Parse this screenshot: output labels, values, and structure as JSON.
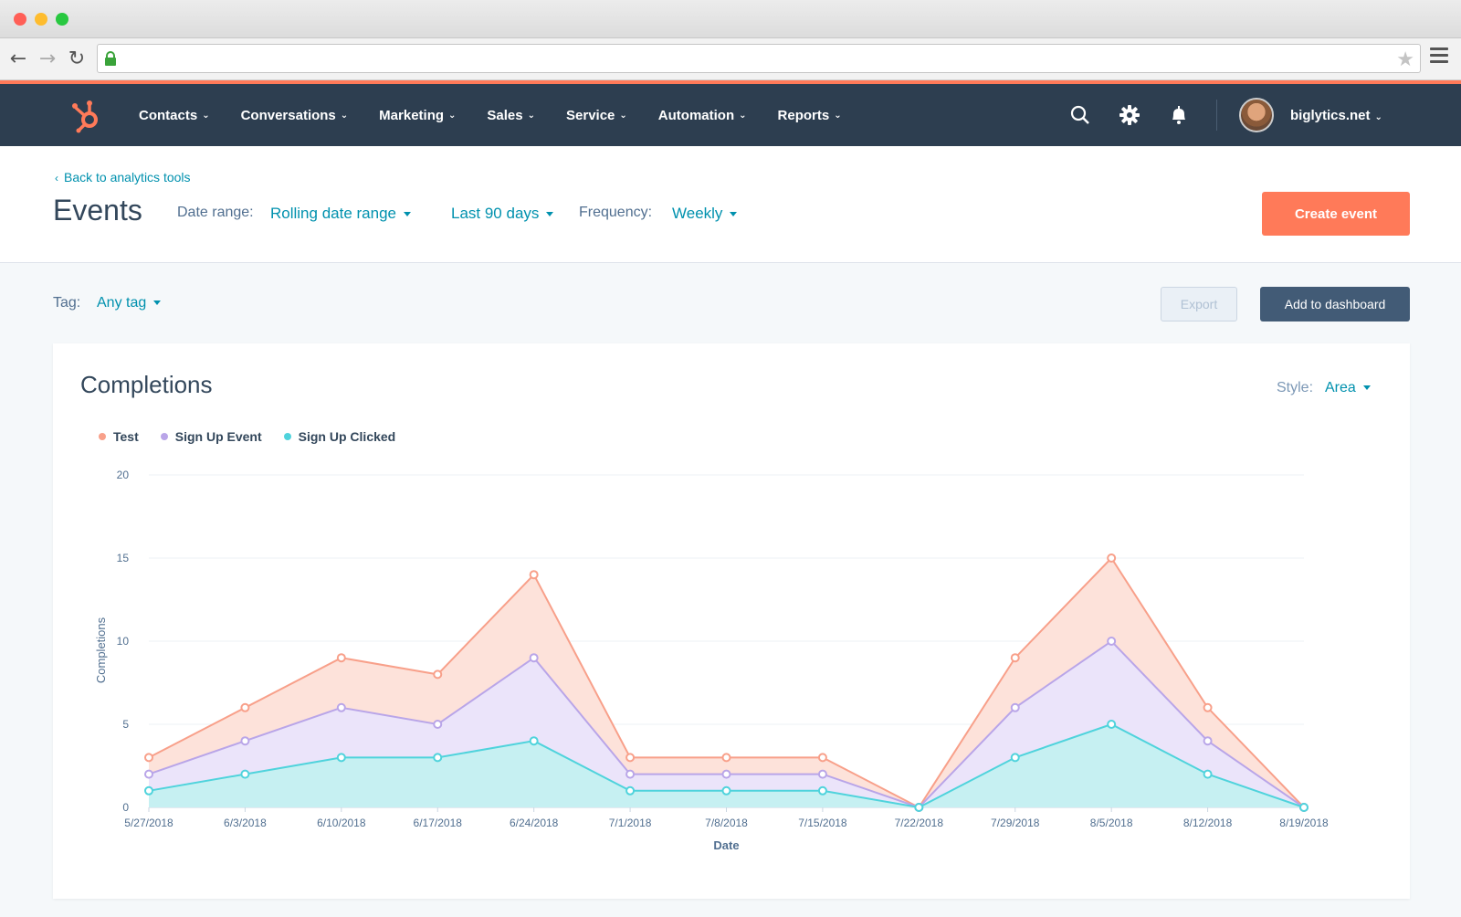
{
  "browser": {
    "url": "",
    "traffic_colors": [
      "#ff5f57",
      "#febc2e",
      "#28c840"
    ]
  },
  "nav": {
    "items": [
      {
        "label": "Contacts"
      },
      {
        "label": "Conversations"
      },
      {
        "label": "Marketing"
      },
      {
        "label": "Sales"
      },
      {
        "label": "Service"
      },
      {
        "label": "Automation"
      },
      {
        "label": "Reports"
      }
    ],
    "account": "biglytics.net",
    "icons": [
      "search-icon",
      "gear-icon",
      "bell-icon"
    ]
  },
  "header": {
    "back_link": "Back to analytics tools",
    "title": "Events",
    "date_range_label": "Date range:",
    "date_range_value": "Rolling date range",
    "period_value": "Last 90 days",
    "frequency_label": "Frequency:",
    "frequency_value": "Weekly",
    "create_button": "Create event"
  },
  "filters": {
    "tag_label": "Tag:",
    "tag_value": "Any tag",
    "export_button": "Export",
    "dashboard_button": "Add to dashboard"
  },
  "card": {
    "title": "Completions",
    "style_label": "Style:",
    "style_value": "Area"
  },
  "colors": {
    "accent": "#ff7a59",
    "nav_bg": "#2d3e50",
    "link": "#0091ae"
  },
  "chart_data": {
    "type": "area",
    "xlabel": "Date",
    "ylabel": "Completions",
    "ylim": [
      0,
      20
    ],
    "yticks": [
      0,
      5,
      10,
      15,
      20
    ],
    "grid": true,
    "legend": "top-left",
    "categories": [
      "5/27/2018",
      "6/3/2018",
      "6/10/2018",
      "6/17/2018",
      "6/24/2018",
      "7/1/2018",
      "7/8/2018",
      "7/15/2018",
      "7/22/2018",
      "7/29/2018",
      "8/5/2018",
      "8/12/2018",
      "8/19/2018"
    ],
    "series": [
      {
        "name": "Test",
        "color": "#f8a08a",
        "fill": "#fde2da",
        "values": [
          3,
          6,
          9,
          8,
          14,
          3,
          3,
          3,
          0,
          9,
          15,
          6,
          0
        ]
      },
      {
        "name": "Sign Up Event",
        "color": "#b9a5e8",
        "fill": "#ebe4fa",
        "values": [
          2,
          4,
          6,
          5,
          9,
          2,
          2,
          2,
          0,
          6,
          10,
          4,
          0
        ]
      },
      {
        "name": "Sign Up Clicked",
        "color": "#4fd3dc",
        "fill": "#c6f0f2",
        "values": [
          1,
          2,
          3,
          3,
          4,
          1,
          1,
          1,
          0,
          3,
          5,
          2,
          0
        ]
      }
    ]
  }
}
